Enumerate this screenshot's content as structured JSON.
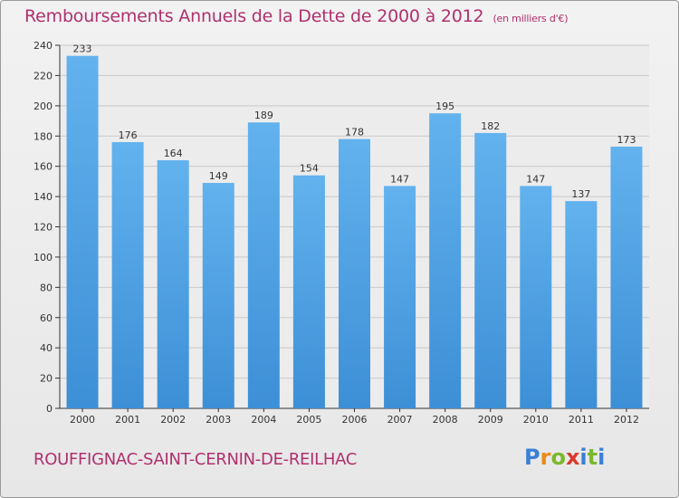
{
  "title": "Remboursements Annuels de la Dette de 2000 à 2012",
  "subtitle": "(en milliers d'€)",
  "commune": "ROUFFIGNAC-SAINT-CERNIN-DE-REILHAC",
  "logo": {
    "letters": [
      "P",
      "r",
      "o",
      "x",
      "i",
      "t",
      "i"
    ],
    "colors": [
      "#3a7fd5",
      "#e98a18",
      "#7bb82d",
      "#d93a2b",
      "#3a7fd5",
      "#7bb82d",
      "#3a7fd5"
    ]
  },
  "colors": {
    "title": "#b0306e",
    "bar": "#3d8fd6",
    "bar_light": "#62b2ee",
    "axis": "#333333"
  },
  "chart_data": {
    "type": "bar",
    "categories": [
      "2000",
      "2001",
      "2002",
      "2003",
      "2004",
      "2005",
      "2006",
      "2007",
      "2008",
      "2009",
      "2010",
      "2011",
      "2012"
    ],
    "values": [
      233,
      176,
      164,
      149,
      189,
      154,
      178,
      147,
      195,
      182,
      147,
      137,
      173
    ],
    "ylim": [
      0,
      240
    ],
    "yticks": [
      0,
      20,
      40,
      60,
      80,
      100,
      120,
      140,
      160,
      180,
      200,
      220,
      240
    ],
    "grid": true,
    "data_labels": true
  }
}
